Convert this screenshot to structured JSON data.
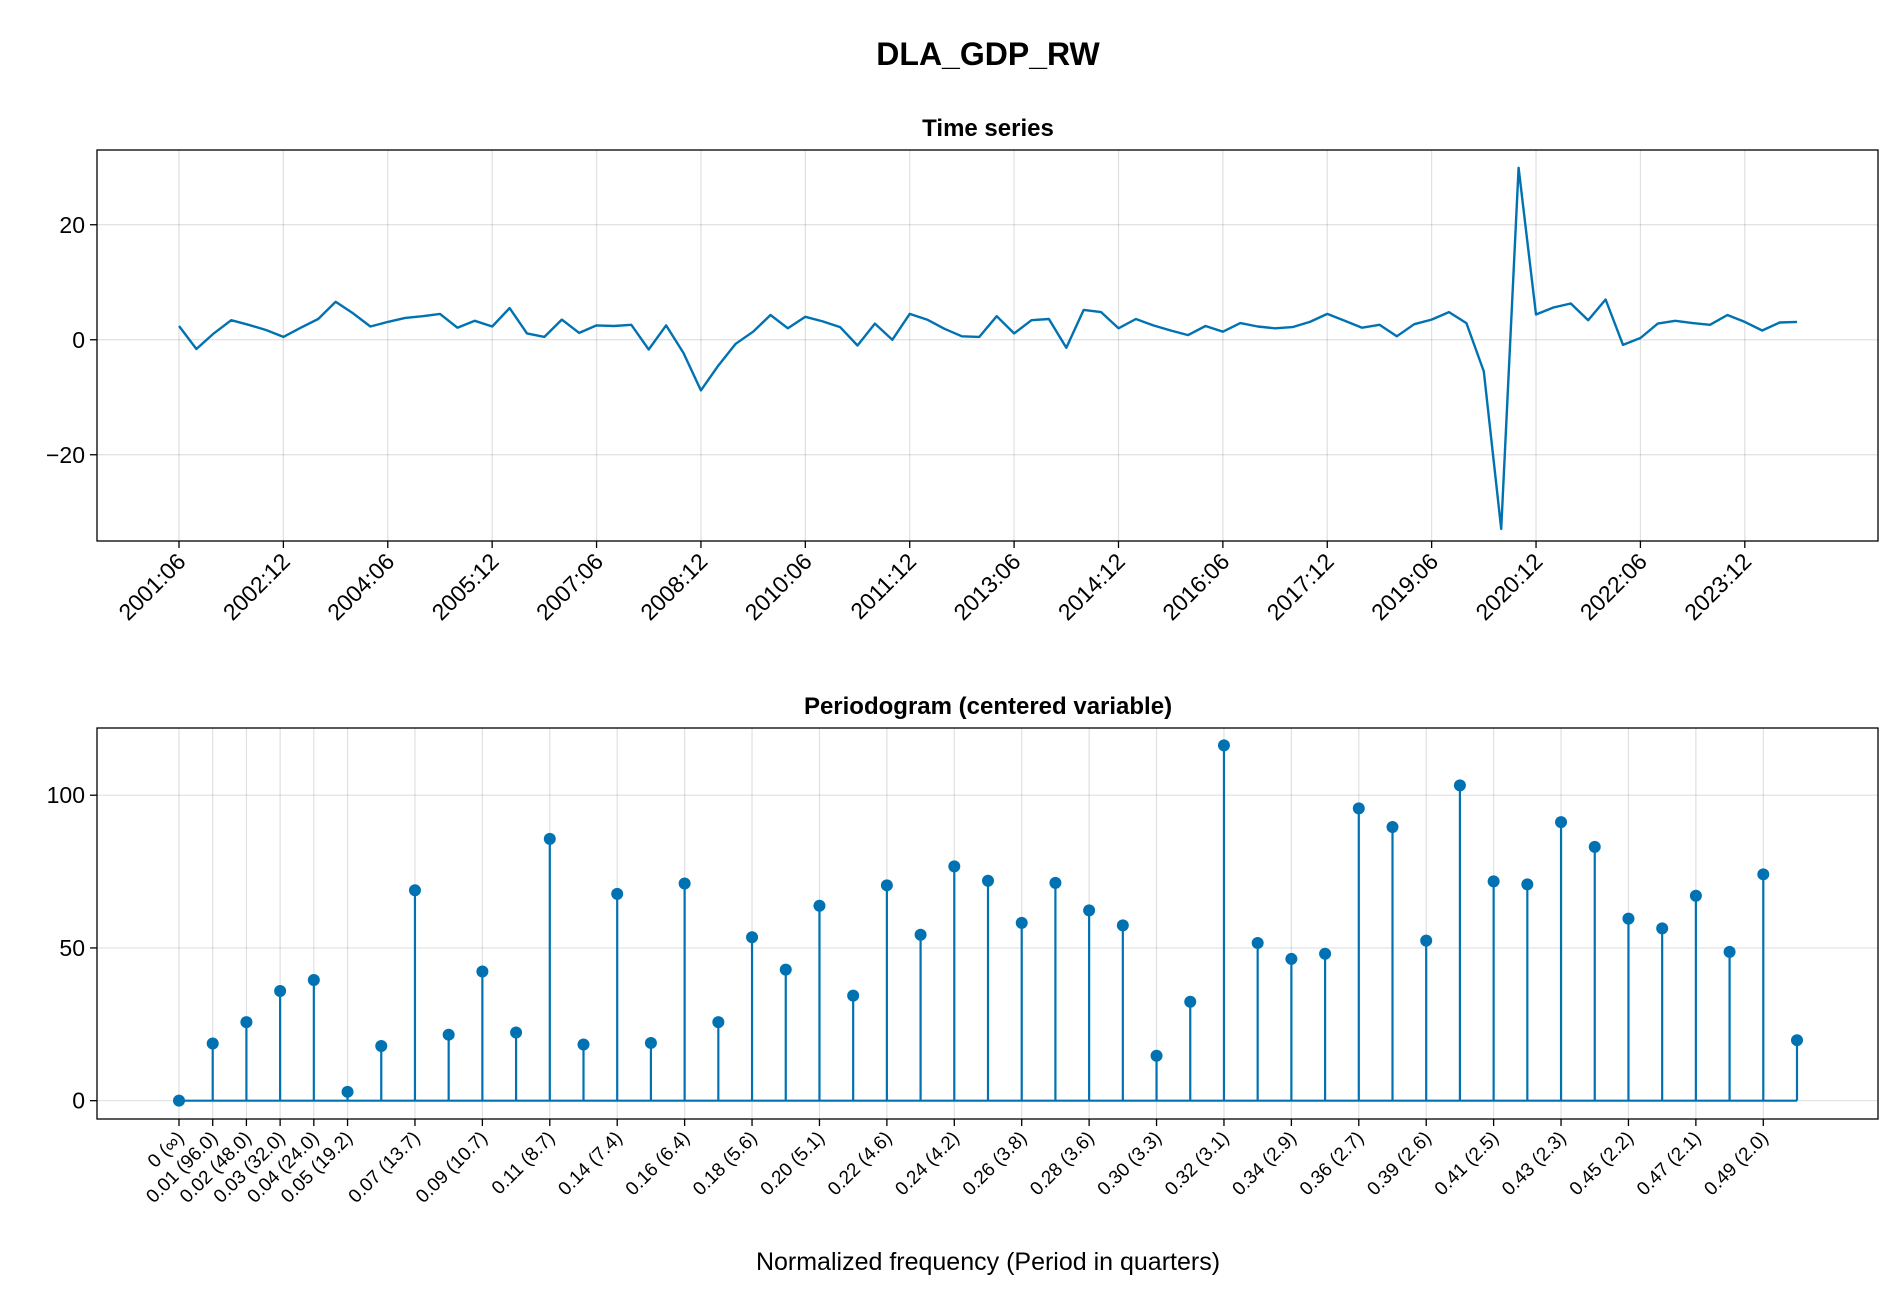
{
  "figure": {
    "title": "DLA_GDP_RW"
  },
  "colors": {
    "series": "#0072b2"
  },
  "chart_data": [
    {
      "type": "line",
      "title": "Time series",
      "xlabel": "",
      "ylabel": "",
      "ylim": [
        -35,
        33
      ],
      "yticks": [
        -20,
        0,
        20
      ],
      "x_tick_labels": [
        "2001:06",
        "2002:12",
        "2004:06",
        "2005:12",
        "2007:06",
        "2008:12",
        "2010:06",
        "2011:12",
        "2013:06",
        "2014:12",
        "2016:06",
        "2017:12",
        "2019:06",
        "2020:12",
        "2022:06",
        "2023:12"
      ],
      "x_first": "2001:06",
      "x_step_months": 3,
      "grid": true,
      "series": [
        {
          "values": [
            2.4,
            -1.6,
            1.1,
            3.4,
            2.6,
            1.7,
            0.5,
            2.1,
            3.6,
            6.6,
            4.6,
            2.3,
            3.1,
            3.8,
            4.1,
            4.5,
            2.1,
            3.3,
            2.3,
            5.5,
            1.1,
            0.5,
            3.5,
            1.2,
            2.5,
            2.4,
            2.6,
            -1.7,
            2.5,
            -2.3,
            -8.8,
            -4.5,
            -0.7,
            1.4,
            4.3,
            2.0,
            4.0,
            3.2,
            2.2,
            -1.0,
            2.8,
            0.0,
            4.5,
            3.5,
            1.9,
            0.6,
            0.5,
            4.1,
            1.1,
            3.4,
            3.6,
            -1.4,
            5.2,
            4.8,
            2.0,
            3.6,
            2.5,
            1.6,
            0.8,
            2.4,
            1.4,
            2.9,
            2.3,
            2.0,
            2.2,
            3.1,
            4.5,
            3.3,
            2.1,
            2.6,
            0.6,
            2.7,
            3.5,
            4.8,
            2.9,
            -5.5,
            -32.9,
            29.9,
            4.4,
            5.6,
            6.3,
            3.4,
            7.0,
            -0.9,
            0.3,
            2.8,
            3.3,
            2.9,
            2.6,
            4.3,
            3.1,
            1.6,
            3.0,
            3.1
          ]
        }
      ]
    },
    {
      "type": "stem",
      "title": "Periodogram (centered variable)",
      "xlabel": "Normalized frequency (Period in quarters)",
      "ylabel": "",
      "ylim": [
        -6,
        122
      ],
      "yticks": [
        0,
        50,
        100
      ],
      "x_tick_labels": [
        "0 (∞)",
        "0.01 (96.0)",
        "0.02 (48.0)",
        "0.03 (32.0)",
        "0.04 (24.0)",
        "0.05 (19.2)",
        "0.07 (13.7)",
        "0.09 (10.7)",
        "0.11 (8.7)",
        "0.14 (7.4)",
        "0.16 (6.4)",
        "0.18 (5.6)",
        "0.20 (5.1)",
        "0.22 (4.6)",
        "0.24 (4.2)",
        "0.26 (3.8)",
        "0.28 (3.6)",
        "0.30 (3.3)",
        "0.32 (3.1)",
        "0.34 (2.9)",
        "0.36 (2.7)",
        "0.39 (2.6)",
        "0.41 (2.5)",
        "0.43 (2.3)",
        "0.45 (2.2)",
        "0.47 (2.1)",
        "0.49 (2.0)"
      ],
      "x_tick_indices": [
        0,
        1,
        2,
        3,
        4,
        5,
        7,
        9,
        11,
        13,
        15,
        17,
        19,
        21,
        23,
        25,
        27,
        29,
        31,
        33,
        35,
        37,
        39,
        41,
        43,
        45,
        47
      ],
      "grid": true,
      "series": [
        {
          "values": [
            0,
            18.7,
            25.7,
            35.9,
            39.5,
            2.9,
            17.9,
            68.9,
            21.6,
            42.3,
            22.3,
            85.7,
            18.4,
            67.7,
            18.9,
            71.1,
            25.7,
            53.5,
            42.9,
            63.8,
            34.4,
            70.5,
            54.3,
            76.7,
            72.0,
            58.2,
            71.3,
            62.3,
            57.4,
            14.7,
            32.4,
            116.3,
            51.6,
            46.4,
            48.1,
            95.7,
            89.6,
            52.4,
            103.2,
            71.8,
            70.8,
            91.2,
            83.1,
            59.6,
            56.4,
            67.1,
            48.7,
            74.1,
            19.8
          ]
        }
      ]
    }
  ]
}
